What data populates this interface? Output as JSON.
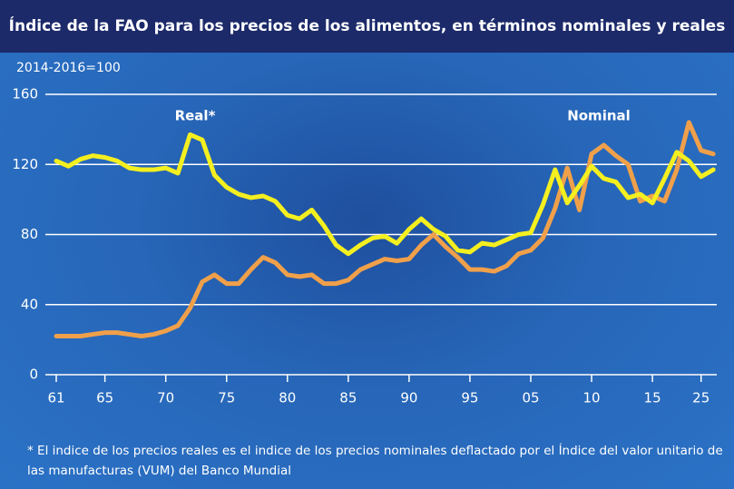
{
  "chart_data": {
    "type": "line",
    "title": "Índice de la FAO para los precios de los alimentos, en términos nominales y reales",
    "y_unit_label": "2014-2016=100",
    "annotations": [
      "Real*",
      "Nominal"
    ],
    "footnote": "* El indice de los precios reales es el indice de los precios nominales deflactado por el Índice del valor unitario de las manufacturas (VUM) del Banco Mundial",
    "categories": [
      "61",
      null,
      null,
      null,
      "65",
      null,
      null,
      null,
      null,
      "70",
      null,
      null,
      null,
      null,
      "75",
      null,
      null,
      null,
      null,
      "80",
      null,
      null,
      null,
      null,
      "85",
      null,
      null,
      null,
      null,
      "90",
      null,
      null,
      null,
      null,
      "95",
      null,
      null,
      null,
      null,
      "05",
      null,
      null,
      null,
      null,
      "10",
      null,
      null,
      null,
      null,
      "15",
      null,
      null,
      null,
      "25",
      null
    ],
    "series": [
      {
        "name": "Real*",
        "color": "#f4ef1f",
        "values": [
          122,
          119,
          123,
          125,
          124,
          122,
          118,
          117,
          117,
          118,
          115,
          137,
          134,
          114,
          107,
          103,
          101,
          102,
          99,
          91,
          89,
          94,
          85,
          74,
          69,
          74,
          78,
          79,
          75,
          83,
          89,
          83,
          79,
          71,
          70,
          75,
          74,
          77,
          80,
          81,
          97,
          117,
          98,
          108,
          119,
          112,
          110,
          101,
          103,
          98,
          112,
          127,
          122,
          113,
          117
        ]
      },
      {
        "name": "Nominal",
        "color": "#f0a04a",
        "values": [
          22,
          22,
          22,
          23,
          24,
          24,
          23,
          22,
          23,
          25,
          28,
          38,
          53,
          57,
          52,
          52,
          60,
          67,
          64,
          57,
          56,
          57,
          52,
          52,
          54,
          60,
          63,
          66,
          65,
          66,
          74,
          80,
          73,
          67,
          60,
          60,
          59,
          62,
          69,
          71,
          78,
          95,
          118,
          94,
          126,
          131,
          125,
          120,
          99,
          102,
          99,
          117,
          144,
          128,
          126
        ]
      }
    ],
    "ylim": [
      0,
      160
    ],
    "yticks": [
      0,
      40,
      80,
      120,
      160
    ],
    "grid": true
  }
}
